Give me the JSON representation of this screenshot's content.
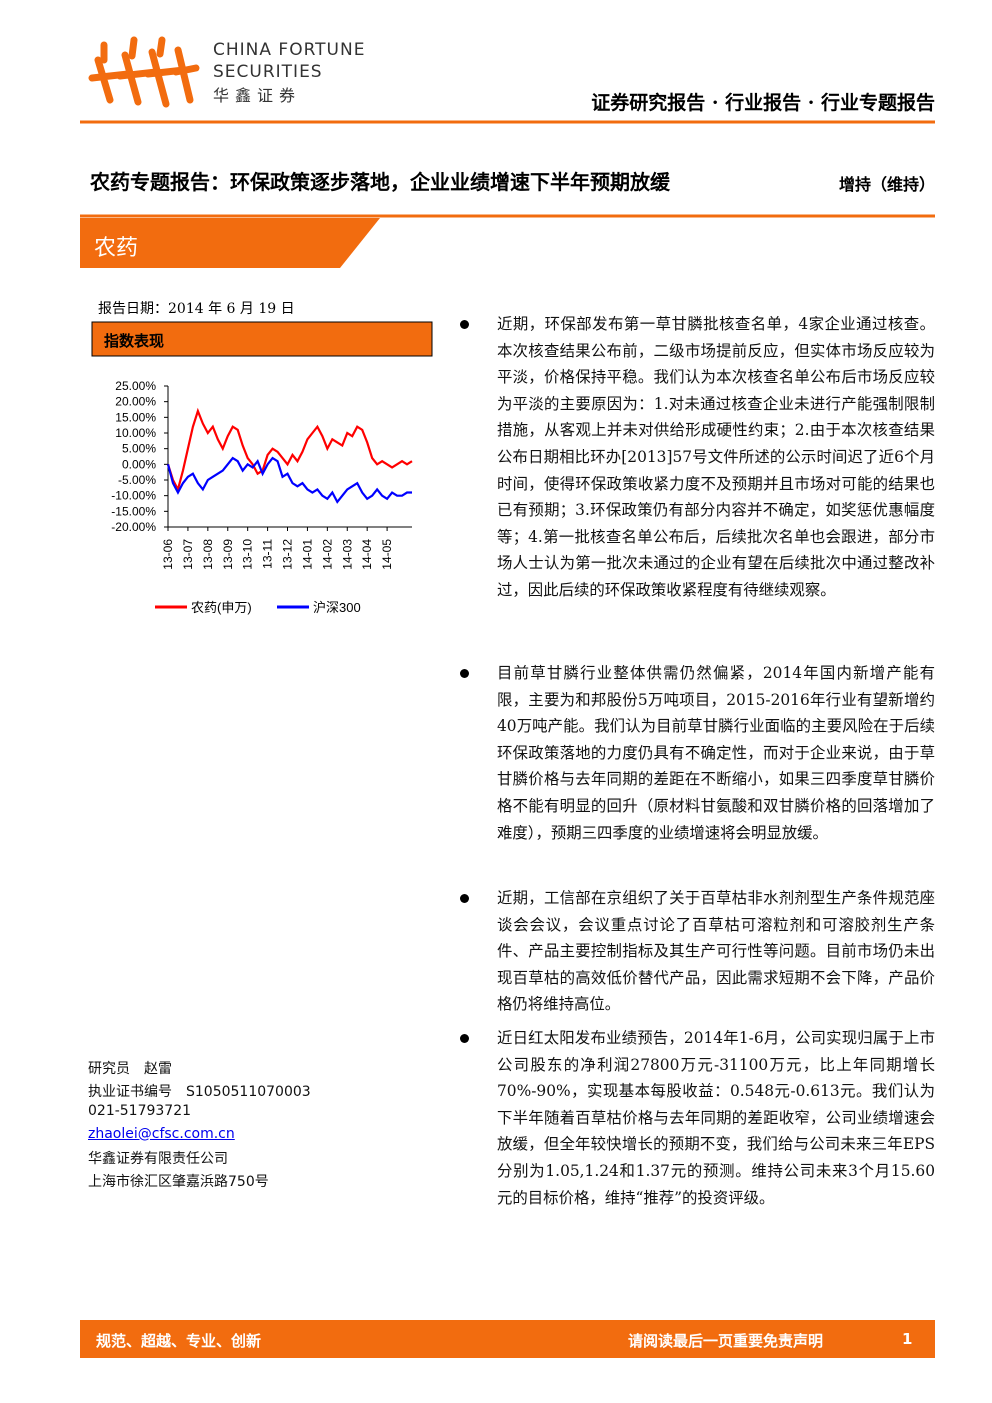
{
  "header": {
    "logo_en_1": "CHINA FORTUNE",
    "logo_en_2": "SECURITIES",
    "logo_cn": "华鑫证券",
    "report_type": "证券研究报告 · 行业报告 · 行业专题报告"
  },
  "title": "农药专题报告：环保政策逐步落地，企业业绩增速下半年预期放缓",
  "rating": "增持（维持）",
  "sector": "农药",
  "report_date": "报告日期：2014 年 6 月 19 日",
  "chart_box_title": "指数表现",
  "chart_data": {
    "type": "line",
    "categories": [
      "13-06",
      null,
      null,
      null,
      "13-07",
      null,
      null,
      null,
      "13-08",
      null,
      null,
      null,
      "13-09",
      null,
      null,
      null,
      "13-10",
      null,
      null,
      null,
      "13-11",
      null,
      null,
      null,
      "13-12",
      null,
      null,
      null,
      "14-01",
      null,
      null,
      null,
      "14-02",
      null,
      null,
      null,
      "14-03",
      null,
      null,
      null,
      "14-04",
      null,
      null,
      null,
      "14-05",
      null,
      null,
      null,
      null,
      null
    ],
    "series": [
      {
        "name": "农药(申万)",
        "color": "#ff0000",
        "values": [
          0,
          -5,
          -8,
          -2,
          5,
          12,
          17,
          13,
          10,
          12,
          8,
          5,
          9,
          12,
          11,
          6,
          2,
          0,
          -3,
          -2,
          3,
          5,
          4,
          2,
          0,
          3,
          1,
          4,
          8,
          10,
          12,
          9,
          5,
          8,
          7,
          6,
          10,
          9,
          12,
          11,
          7,
          2,
          0,
          1,
          0,
          -1,
          0,
          1,
          0,
          1
        ]
      },
      {
        "name": "沪深300",
        "color": "#0000ff",
        "values": [
          0,
          -6,
          -9,
          -6,
          -4,
          -3,
          -6,
          -8,
          -5,
          -4,
          -3,
          -2,
          0,
          2,
          1,
          -2,
          0,
          -1,
          1,
          -3,
          0,
          2,
          1,
          -4,
          -3,
          -6,
          -7,
          -6,
          -8,
          -9,
          -8,
          -10,
          -11,
          -9,
          -12,
          -10,
          -8,
          -7,
          -6,
          -9,
          -11,
          -10,
          -8,
          -10,
          -11,
          -9,
          -10,
          -10,
          -9,
          -9
        ]
      }
    ],
    "ylim": [
      -20,
      25
    ],
    "yticks": [
      {
        "value": 25,
        "label": "25.00%"
      },
      {
        "value": 20,
        "label": "20.00%"
      },
      {
        "value": 15,
        "label": "15.00%"
      },
      {
        "value": 10,
        "label": "10.00%"
      },
      {
        "value": 5,
        "label": "5.00%"
      },
      {
        "value": 0,
        "label": "0.00%"
      },
      {
        "value": -5,
        "label": "-5.00%"
      },
      {
        "value": -10,
        "label": "-10.00%"
      },
      {
        "value": -15,
        "label": "-15.00%"
      },
      {
        "value": -20,
        "label": "-20.00%"
      }
    ],
    "grid": false,
    "legend": "bottom"
  },
  "paragraphs": [
    "近期，环保部发布第一草甘膦批核查名单，4家企业通过核查。本次核查结果公布前，二级市场提前反应，但实体市场反应较为平淡，价格保持平稳。我们认为本次核查名单公布后市场反应较为平淡的主要原因为：1.对未通过核查企业未进行产能强制限制措施，从客观上并未对供给形成硬性约束；2.由于本次核查结果公布日期相比环办[2013]57号文件所述的公示时间迟了近6个月时间，使得环保政策收紧力度不及预期并且市场对可能的结果也已有预期；3.环保政策仍有部分内容并不确定，如奖惩优惠幅度等；4.第一批核查名单公布后，后续批次名单也会跟进，部分市场人士认为第一批次未通过的企业有望在后续批次中通过整改补过，因此后续的环保政策收紧程度有待继续观察。",
    "目前草甘膦行业整体供需仍然偏紧，2014年国内新增产能有限，主要为和邦股份5万吨项目，2015-2016年行业有望新增约40万吨产能。我们认为目前草甘膦行业面临的主要风险在于后续环保政策落地的力度仍具有不确定性，而对于企业来说，由于草甘膦价格与去年同期的差距在不断缩小，如果三四季度草甘膦价格不能有明显的回升（原材料甘氨酸和双甘膦价格的回落增加了难度），预期三四季度的业绩增速将会明显放缓。",
    "近期，工信部在京组织了关于百草枯非水剂剂型生产条件规范座谈会会议，会议重点讨论了百草枯可溶粒剂和可溶胶剂生产条件、产品主要控制指标及其生产可行性等问题。目前市场仍未出现百草枯的高效低价替代产品，因此需求短期不会下降，产品价格仍将维持高位。",
    "近日红太阳发布业绩预告，2014年1-6月，公司实现归属于上市公司股东的净利润27800万元-31100万元，比上年同期增长70%-90%，实现基本每股收益：0.548元-0.613元。我们认为下半年随着百草枯价格与去年同期的差距收窄，公司业绩增速会放缓，但全年较快增长的预期不变，我们给与公司未来三年EPS分别为1.05,1.24和1.37元的预测。维持公司未来3个月15.60元的目标价格，维持“推荐”的投资评级。"
  ],
  "contact": [
    "研究员　赵雷",
    "执业证书编号　S1050511070003",
    "021-51793721",
    "zhaolei@cfsc.com.cn",
    "华鑫证券有限责任公司",
    "上海市徐汇区肇嘉浜路750号"
  ],
  "footer": {
    "slogan": "规范、超越、专业、创新",
    "disclaimer": "请阅读最后一页重要免责声明",
    "page": "1"
  }
}
